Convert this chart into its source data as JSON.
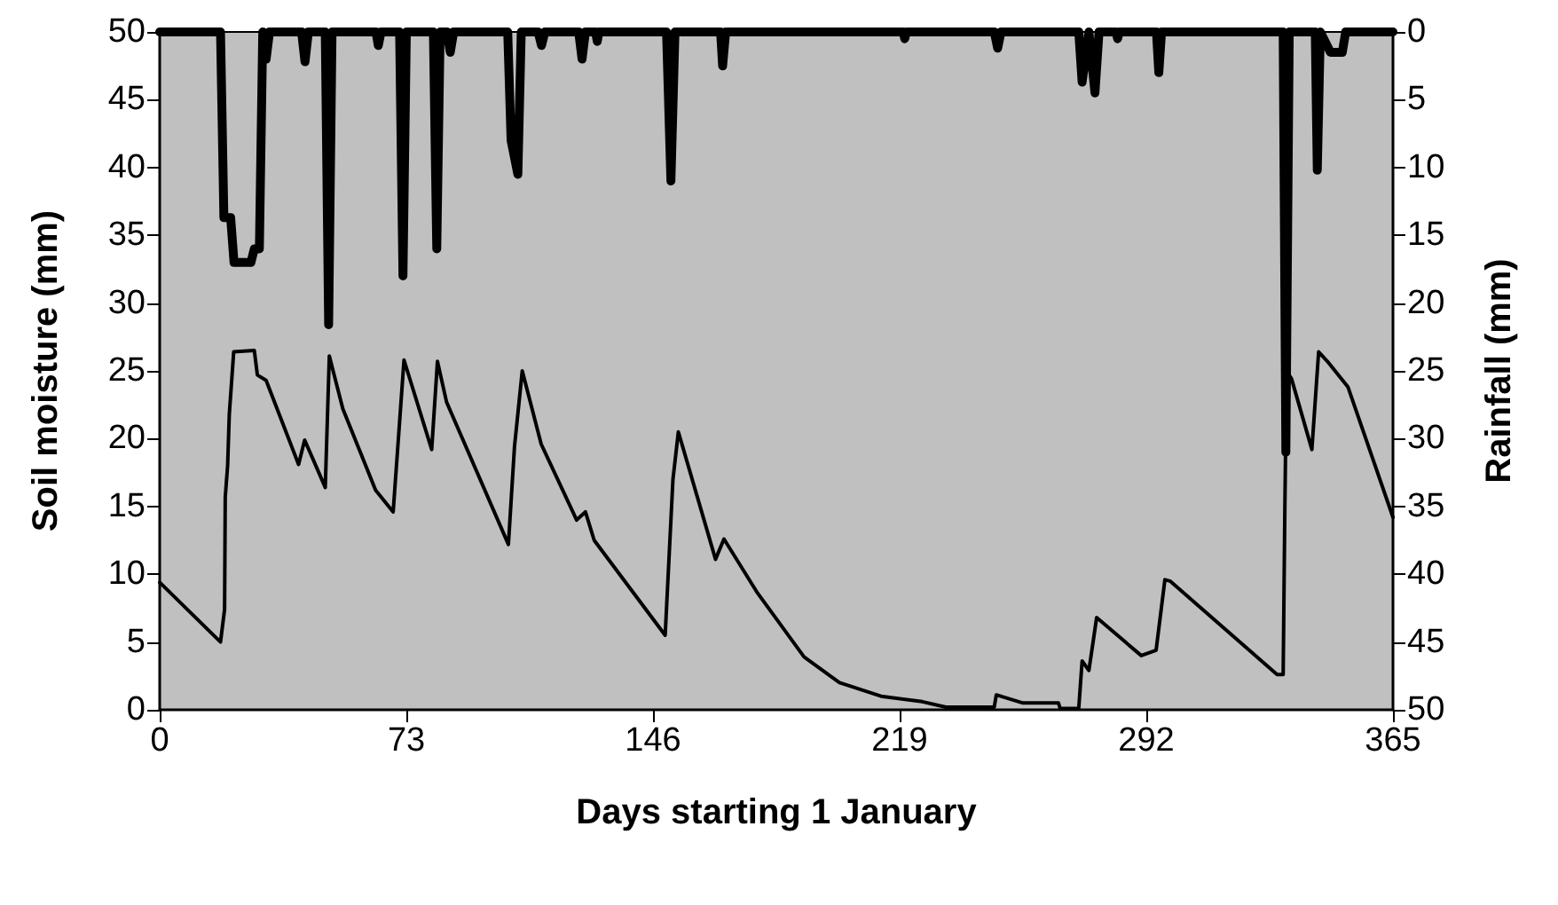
{
  "chart_data": {
    "type": "line",
    "xlabel": "Days starting 1 January",
    "ylabel": "Soil moisture (mm)",
    "y2label": "Rainfall (mm)",
    "xlim": [
      0,
      365
    ],
    "xticks": [
      0,
      73,
      146,
      219,
      292,
      365
    ],
    "ylim": [
      0,
      50
    ],
    "yticks": [
      0,
      5,
      10,
      15,
      20,
      25,
      30,
      35,
      40,
      45,
      50
    ],
    "y2lim": [
      50,
      0
    ],
    "y2ticks": [
      0,
      5,
      10,
      15,
      20,
      25,
      30,
      35,
      40,
      45,
      50
    ],
    "grid": false,
    "marker": "none",
    "line_style": "solid",
    "series": [
      {
        "color": "#000000",
        "x": [
          0,
          18,
          19.2,
          19.4,
          20.1,
          20.6,
          21.9,
          28,
          28.9,
          31.5,
          41.1,
          42.9,
          49,
          50.2,
          54.2,
          63.9,
          69.1,
          72.3,
          80.5,
          82.2,
          84.9,
          103.2,
          105,
          107.3,
          112.9,
          123.4,
          126,
          128.6,
          149.6,
          151.9,
          153.5,
          164.5,
          167,
          176.7,
          190.7,
          201.2,
          213.5,
          225.7,
          232.7,
          247,
          247.6,
          255.5,
          266,
          266.5,
          272,
          273,
          275,
          277.3,
          290.5,
          294.9,
          297.5,
          299,
          330.7,
          332.5,
          333,
          333.5,
          335,
          341,
          343,
          345.6,
          351.7,
          365
        ],
        "values": [
          9.4,
          5.0,
          7.4,
          15.7,
          18,
          21.8,
          26.4,
          26.5,
          24.7,
          24.3,
          18.1,
          19.9,
          16.4,
          26.1,
          22.2,
          16.2,
          14.6,
          25.8,
          19.2,
          25.7,
          22.7,
          12.2,
          19.4,
          25,
          19.6,
          14,
          14.6,
          12.5,
          5.5,
          17,
          20.5,
          11.1,
          12.6,
          8.7,
          3.9,
          2.0,
          1.0,
          0.6,
          0.2,
          0.2,
          1.1,
          0.5,
          0.5,
          0.1,
          0.1,
          3.6,
          2.9,
          6.8,
          4.0,
          4.4,
          9.6,
          9.5,
          2.6,
          2.6,
          14.8,
          25,
          24.4,
          19.2,
          26.4,
          25.7,
          23.8,
          14.2
        ]
      },
      {
        "color": "#000000",
        "axis": "y2",
        "x": [
          0,
          18,
          19,
          21,
          22,
          27,
          28,
          29.5,
          30.5,
          31.5,
          32.5,
          42,
          43,
          44,
          49,
          50,
          51,
          64,
          64.7,
          65.5,
          71,
          72,
          73,
          81,
          82,
          83,
          85,
          86,
          87,
          103,
          104,
          106,
          107,
          112,
          113,
          114,
          124,
          125,
          126,
          129,
          129.5,
          130,
          150,
          151.3,
          152.5,
          166,
          166.6,
          167.5,
          220,
          220.5,
          221,
          247,
          248,
          249,
          272,
          273,
          275,
          276.8,
          278,
          283,
          283.5,
          284,
          295,
          295.7,
          296.5,
          332.5,
          333.3,
          334.3,
          342,
          342.6,
          343.5,
          346.5,
          350,
          351,
          365
        ],
        "values": [
          0,
          0,
          13.7,
          13.7,
          17,
          17,
          16,
          16,
          0,
          2,
          0,
          0,
          2.2,
          0,
          0,
          21.6,
          0,
          0,
          1,
          0,
          0,
          18,
          0,
          0,
          16,
          0,
          0,
          1.5,
          0,
          0,
          8,
          10.5,
          0,
          0,
          1,
          0,
          0,
          2,
          0,
          0,
          0.7,
          0,
          0,
          11,
          0,
          0,
          2.5,
          0,
          0,
          0.5,
          0,
          0,
          1.2,
          0,
          0,
          3.7,
          0,
          4.5,
          0,
          0,
          0.5,
          0,
          0,
          3,
          0,
          0,
          31,
          0,
          0,
          10.2,
          0,
          1.5,
          1.5,
          0,
          0
        ]
      }
    ]
  }
}
